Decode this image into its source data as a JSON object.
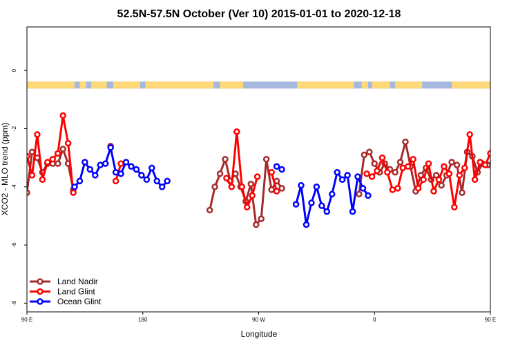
{
  "chart_data": {
    "type": "line",
    "title": "52.5N-57.5N October (Ver 10)   2015-01-01 to 2020-12-18",
    "xlabel": "Longitude",
    "ylabel": "XCO2 - MLO trend (ppm)",
    "xlim": [
      90,
      450
    ],
    "ylim": [
      -8.3,
      1.5
    ],
    "x_ticks": [
      {
        "value": 90,
        "label": "90 E"
      },
      {
        "value": 180,
        "label": "180"
      },
      {
        "value": 270,
        "label": "90 W"
      },
      {
        "value": 360,
        "label": "0"
      },
      {
        "value": 450,
        "label": "90 E"
      },
      {
        "value": 540,
        "label": "180"
      }
    ],
    "x_tick_values": [
      90,
      180,
      270,
      360,
      450,
      540
    ],
    "y_ticks": [
      0,
      -2,
      -4,
      -6,
      -8
    ],
    "legend_position": "bottom-left",
    "land_ocean_strip": {
      "y_range": [
        -0.62,
        -0.38
      ],
      "ocean_color": "#A4B9DD",
      "land_color": "#FFD878",
      "land_segments": [
        [
          90,
          127
        ],
        [
          131,
          136
        ],
        [
          140,
          152
        ],
        [
          157,
          178
        ],
        [
          182,
          235
        ],
        [
          240,
          258
        ],
        [
          300,
          344
        ],
        [
          350,
          355
        ],
        [
          358,
          372
        ],
        [
          376,
          397
        ],
        [
          420,
          470
        ],
        [
          475,
          480
        ],
        [
          485,
          497
        ],
        [
          520,
          541
        ]
      ]
    },
    "series": [
      {
        "name": "Land Nadir",
        "color": "#A52A2A",
        "segments": [
          [
            [
              90,
              -4.2
            ],
            [
              94,
              -2.8
            ],
            [
              98,
              -3.0
            ],
            [
              102,
              -3.5
            ],
            [
              106,
              -3.2
            ],
            [
              110,
              -3.2
            ],
            [
              114,
              -3.2
            ],
            [
              118,
              -2.7
            ],
            [
              122,
              -3.2
            ],
            [
              126,
              -4.1
            ]
          ],
          [
            [
              155,
              -2.6
            ]
          ],
          [
            [
              232,
              -4.8
            ],
            [
              236,
              -4.0
            ],
            [
              240,
              -3.55
            ],
            [
              244,
              -3.05
            ],
            [
              248,
              -3.8
            ],
            [
              252,
              -3.55
            ],
            [
              256,
              -4.0
            ],
            [
              260,
              -4.5
            ],
            [
              264,
              -3.9
            ],
            [
              268,
              -5.3
            ],
            [
              272,
              -5.1
            ],
            [
              276,
              -3.05
            ],
            [
              280,
              -4.1
            ],
            [
              284,
              -3.8
            ],
            [
              288,
              -4.05
            ]
          ],
          [
            [
              348,
              -4.25
            ],
            [
              352,
              -2.9
            ],
            [
              356,
              -2.8
            ],
            [
              360,
              -3.2
            ],
            [
              364,
              -3.5
            ],
            [
              368,
              -3.2
            ],
            [
              372,
              -3.4
            ],
            [
              376,
              -3.5
            ],
            [
              380,
              -3.15
            ],
            [
              384,
              -2.45
            ],
            [
              388,
              -3.3
            ],
            [
              392,
              -4.15
            ],
            [
              396,
              -3.6
            ],
            [
              400,
              -3.35
            ],
            [
              404,
              -3.75
            ],
            [
              408,
              -3.6
            ],
            [
              412,
              -3.95
            ],
            [
              416,
              -3.6
            ],
            [
              420,
              -3.15
            ],
            [
              424,
              -3.25
            ],
            [
              428,
              -4.2
            ],
            [
              432,
              -2.8
            ],
            [
              436,
              -2.95
            ],
            [
              440,
              -3.5
            ],
            [
              444,
              -3.2
            ],
            [
              448,
              -3.25
            ],
            [
              452,
              -3.1
            ],
            [
              456,
              -2.7
            ],
            [
              460,
              -3.2
            ],
            [
              464,
              -4.1
            ]
          ],
          [
            [
              489,
              -2.6
            ]
          ]
        ]
      },
      {
        "name": "Land Glint",
        "color": "#FF0000",
        "segments": [
          [
            [
              90,
              -2.95
            ],
            [
              94,
              -3.6
            ],
            [
              98,
              -2.2
            ],
            [
              102,
              -3.75
            ],
            [
              106,
              -3.15
            ],
            [
              110,
              -3.05
            ],
            [
              114,
              -2.85
            ],
            [
              118,
              -1.55
            ],
            [
              122,
              -2.5
            ],
            [
              126,
              -4.2
            ]
          ],
          [
            [
              159,
              -3.8
            ],
            [
              163,
              -3.2
            ]
          ],
          [
            [
              245,
              -3.7
            ],
            [
              249,
              -4.0
            ],
            [
              253,
              -2.1
            ],
            [
              257,
              -4.0
            ],
            [
              261,
              -4.7
            ],
            [
              265,
              -4.3
            ],
            [
              269,
              -3.65
            ]
          ],
          [
            [
              280,
              -3.5
            ],
            [
              284,
              -4.15
            ]
          ],
          [
            [
              354,
              -3.55
            ],
            [
              358,
              -3.65
            ],
            [
              362,
              -3.45
            ],
            [
              366,
              -3.0
            ],
            [
              370,
              -3.5
            ],
            [
              374,
              -4.1
            ],
            [
              378,
              -4.05
            ],
            [
              382,
              -3.35
            ],
            [
              386,
              -3.3
            ],
            [
              390,
              -3.05
            ],
            [
              394,
              -4.05
            ],
            [
              398,
              -3.75
            ],
            [
              402,
              -3.2
            ],
            [
              406,
              -4.15
            ],
            [
              410,
              -3.75
            ],
            [
              414,
              -3.3
            ],
            [
              418,
              -3.55
            ],
            [
              422,
              -4.7
            ],
            [
              426,
              -3.6
            ],
            [
              430,
              -3.35
            ],
            [
              434,
              -2.2
            ],
            [
              438,
              -3.75
            ],
            [
              442,
              -3.15
            ],
            [
              446,
              -3.25
            ],
            [
              450,
              -2.85
            ],
            [
              454,
              -1.55
            ],
            [
              458,
              -2.5
            ],
            [
              462,
              -4.2
            ]
          ],
          [
            [
              492,
              -3.2
            ],
            [
              496,
              -3.8
            ]
          ]
        ]
      },
      {
        "name": "Ocean Glint",
        "color": "#0000FF",
        "segments": [
          [
            [
              127,
              -4.0
            ],
            [
              131,
              -3.8
            ],
            [
              135,
              -3.15
            ],
            [
              139,
              -3.4
            ],
            [
              143,
              -3.6
            ],
            [
              147,
              -3.25
            ],
            [
              151,
              -3.2
            ],
            [
              155,
              -2.65
            ],
            [
              159,
              -3.5
            ],
            [
              163,
              -3.55
            ],
            [
              167,
              -3.15
            ],
            [
              171,
              -3.3
            ],
            [
              175,
              -3.4
            ],
            [
              179,
              -3.6
            ],
            [
              183,
              -3.75
            ],
            [
              187,
              -3.35
            ],
            [
              191,
              -3.8
            ],
            [
              195,
              -4.0
            ],
            [
              199,
              -3.8
            ]
          ],
          [
            [
              284,
              -3.3
            ],
            [
              288,
              -3.4
            ]
          ],
          [
            [
              299,
              -4.6
            ],
            [
              303,
              -3.95
            ],
            [
              307,
              -5.3
            ],
            [
              311,
              -4.55
            ],
            [
              315,
              -4.0
            ],
            [
              319,
              -4.65
            ],
            [
              323,
              -4.85
            ],
            [
              327,
              -4.25
            ],
            [
              331,
              -3.5
            ],
            [
              335,
              -3.75
            ],
            [
              339,
              -3.6
            ],
            [
              343,
              -4.85
            ],
            [
              347,
              -3.65
            ],
            [
              351,
              -4.05
            ],
            [
              355,
              -4.3
            ]
          ],
          [
            [
              463,
              -4.0
            ],
            [
              467,
              -3.8
            ],
            [
              471,
              -3.15
            ],
            [
              475,
              -3.4
            ],
            [
              479,
              -3.6
            ],
            [
              483,
              -3.25
            ],
            [
              487,
              -3.2
            ],
            [
              491,
              -2.65
            ],
            [
              495,
              -3.5
            ]
          ]
        ]
      }
    ]
  }
}
